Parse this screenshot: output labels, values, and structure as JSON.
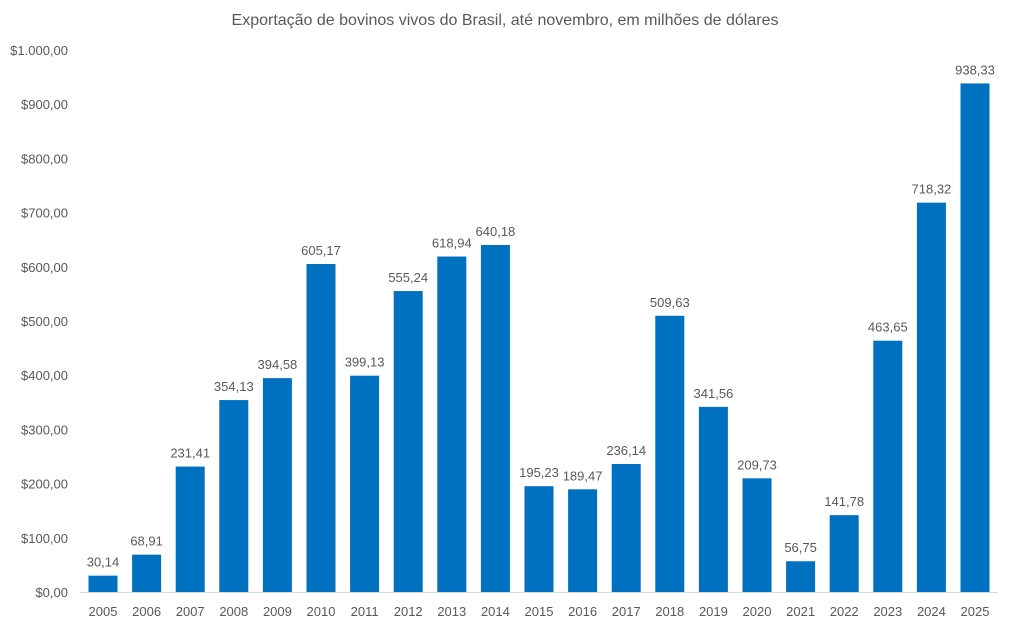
{
  "chart_data": {
    "type": "bar",
    "title": "Exportação de bovinos vivos do Brasil, até novembro, em milhões de dólares",
    "xlabel": "",
    "ylabel": "",
    "ylim": [
      0,
      1000
    ],
    "grid": false,
    "legend": "none",
    "bar_color": "#0070C0",
    "yticks": [
      0,
      100,
      200,
      300,
      400,
      500,
      600,
      700,
      800,
      900,
      1000
    ],
    "ytick_labels": [
      "$0,00",
      "$100,00",
      "$200,00",
      "$300,00",
      "$400,00",
      "$500,00",
      "$600,00",
      "$700,00",
      "$800,00",
      "$900,00",
      "$1.000,00"
    ],
    "categories": [
      "2005",
      "2006",
      "2007",
      "2008",
      "2009",
      "2010",
      "2011",
      "2012",
      "2013",
      "2014",
      "2015",
      "2016",
      "2017",
      "2018",
      "2019",
      "2020",
      "2021",
      "2022",
      "2023",
      "2024",
      "2025"
    ],
    "values": [
      30.14,
      68.91,
      231.41,
      354.13,
      394.58,
      605.17,
      399.13,
      555.24,
      618.94,
      640.18,
      195.23,
      189.47,
      236.14,
      509.63,
      341.56,
      209.73,
      56.75,
      141.78,
      463.65,
      718.32,
      938.33
    ],
    "data_labels": [
      "30,14",
      "68,91",
      "231,41",
      "354,13",
      "394,58",
      "605,17",
      "399,13",
      "555,24",
      "618,94",
      "640,18",
      "195,23",
      "189,47",
      "236,14",
      "509,63",
      "341,56",
      "209,73",
      "56,75",
      "141,78",
      "463,65",
      "718,32",
      "938,33"
    ]
  }
}
